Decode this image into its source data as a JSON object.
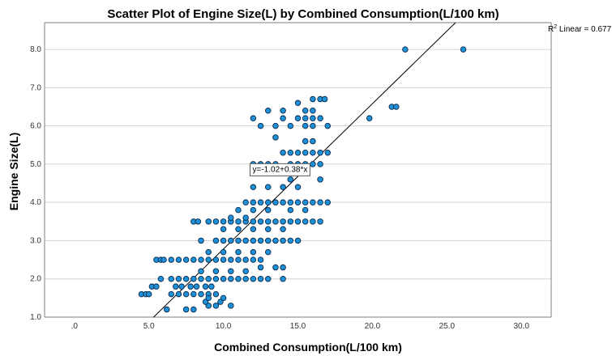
{
  "colors": {
    "point_fill": "#1E90D8",
    "point_stroke": "#0B2A4A",
    "fit_line": "#000000",
    "grid": "#D4D4D4",
    "axis": "#7F7F7F"
  },
  "chart_data": {
    "type": "scatter",
    "title": "Scatter Plot of Engine Size(L) by Combined Consumption(L/100 km)",
    "xlabel": "Combined Consumption(L/100 km)",
    "ylabel": "Engine Size(L)",
    "xlim": [
      -2.0,
      32.0
    ],
    "ylim": [
      1.0,
      8.7
    ],
    "x_ticks": [
      0,
      5,
      10,
      15,
      20,
      25,
      30
    ],
    "x_tick_labels": [
      ".0",
      "5.0",
      "10.0",
      "15.0",
      "20.0",
      "25.0",
      "30.0"
    ],
    "y_ticks": [
      1,
      2,
      3,
      4,
      5,
      6,
      7,
      8
    ],
    "y_tick_labels": [
      "1.0",
      "2.0",
      "3.0",
      "4.0",
      "5.0",
      "6.0",
      "7.0",
      "8.0"
    ],
    "grid": "horizontal",
    "fit_line": {
      "intercept": -1.02,
      "slope": 0.38,
      "label": "y=-1.02+0.38*x",
      "label_at": [
        13.8,
        4.8
      ]
    },
    "r2_label": {
      "prefix": "R",
      "superscript": "2",
      "text": " Linear = 0.677"
    },
    "points": [
      [
        4.5,
        1.6
      ],
      [
        4.8,
        1.6
      ],
      [
        5.0,
        1.6
      ],
      [
        5.2,
        1.8
      ],
      [
        5.5,
        1.8
      ],
      [
        5.5,
        2.5
      ],
      [
        5.8,
        2.5
      ],
      [
        6.0,
        2.5
      ],
      [
        5.8,
        2.0
      ],
      [
        6.5,
        2.0
      ],
      [
        7.0,
        2.0
      ],
      [
        7.5,
        2.0
      ],
      [
        6.5,
        2.5
      ],
      [
        7.0,
        2.5
      ],
      [
        7.5,
        2.5
      ],
      [
        6.5,
        1.6
      ],
      [
        7.0,
        1.6
      ],
      [
        7.5,
        1.6
      ],
      [
        8.0,
        1.6
      ],
      [
        8.5,
        1.6
      ],
      [
        9.0,
        1.6
      ],
      [
        9.5,
        1.6
      ],
      [
        6.8,
        1.8
      ],
      [
        7.2,
        1.8
      ],
      [
        7.8,
        1.8
      ],
      [
        8.2,
        1.8
      ],
      [
        8.8,
        1.8
      ],
      [
        9.2,
        1.8
      ],
      [
        6.2,
        1.2
      ],
      [
        7.5,
        1.2
      ],
      [
        8.0,
        1.2
      ],
      [
        9.0,
        1.3
      ],
      [
        9.5,
        1.3
      ],
      [
        10.5,
        1.3
      ],
      [
        8.8,
        1.4
      ],
      [
        9.8,
        1.4
      ],
      [
        10.0,
        1.5
      ],
      [
        9.0,
        1.5
      ],
      [
        8.0,
        2.0
      ],
      [
        8.5,
        2.0
      ],
      [
        9.0,
        2.0
      ],
      [
        9.5,
        2.0
      ],
      [
        10.0,
        2.0
      ],
      [
        10.5,
        2.0
      ],
      [
        11.0,
        2.0
      ],
      [
        11.5,
        2.0
      ],
      [
        12.0,
        2.0
      ],
      [
        12.5,
        2.0
      ],
      [
        8.5,
        2.2
      ],
      [
        9.5,
        2.2
      ],
      [
        10.5,
        2.2
      ],
      [
        11.5,
        2.2
      ],
      [
        13.0,
        2.0
      ],
      [
        8.0,
        2.5
      ],
      [
        8.5,
        2.5
      ],
      [
        9.0,
        2.5
      ],
      [
        9.5,
        2.5
      ],
      [
        10.0,
        2.5
      ],
      [
        10.5,
        2.5
      ],
      [
        11.0,
        2.5
      ],
      [
        11.5,
        2.5
      ],
      [
        12.0,
        2.5
      ],
      [
        12.5,
        2.5
      ],
      [
        9.0,
        2.7
      ],
      [
        10.0,
        2.7
      ],
      [
        11.0,
        2.7
      ],
      [
        12.0,
        2.7
      ],
      [
        13.0,
        2.7
      ],
      [
        8.5,
        3.0
      ],
      [
        9.5,
        3.0
      ],
      [
        10.0,
        3.0
      ],
      [
        10.5,
        3.0
      ],
      [
        11.0,
        3.0
      ],
      [
        11.5,
        3.0
      ],
      [
        12.0,
        3.0
      ],
      [
        12.5,
        3.0
      ],
      [
        13.0,
        3.0
      ],
      [
        13.5,
        3.0
      ],
      [
        14.0,
        3.0
      ],
      [
        14.5,
        3.0
      ],
      [
        15.0,
        3.0
      ],
      [
        10.0,
        3.3
      ],
      [
        11.0,
        3.3
      ],
      [
        12.0,
        3.3
      ],
      [
        13.0,
        3.3
      ],
      [
        14.0,
        3.3
      ],
      [
        12.5,
        2.3
      ],
      [
        13.5,
        2.3
      ],
      [
        14.0,
        2.3
      ],
      [
        14.0,
        2.0
      ],
      [
        9.0,
        3.5
      ],
      [
        9.5,
        3.5
      ],
      [
        10.0,
        3.5
      ],
      [
        10.5,
        3.5
      ],
      [
        11.0,
        3.5
      ],
      [
        11.5,
        3.5
      ],
      [
        12.0,
        3.5
      ],
      [
        12.5,
        3.5
      ],
      [
        13.0,
        3.5
      ],
      [
        13.5,
        3.5
      ],
      [
        14.0,
        3.5
      ],
      [
        14.5,
        3.5
      ],
      [
        15.0,
        3.5
      ],
      [
        15.5,
        3.5
      ],
      [
        16.0,
        3.5
      ],
      [
        16.5,
        3.5
      ],
      [
        8.0,
        3.5
      ],
      [
        8.3,
        3.5
      ],
      [
        10.5,
        3.6
      ],
      [
        11.5,
        3.6
      ],
      [
        11.0,
        3.8
      ],
      [
        12.0,
        3.8
      ],
      [
        13.0,
        3.8
      ],
      [
        14.5,
        3.8
      ],
      [
        15.5,
        3.8
      ],
      [
        11.5,
        4.0
      ],
      [
        12.0,
        4.0
      ],
      [
        12.5,
        4.0
      ],
      [
        13.0,
        4.0
      ],
      [
        13.5,
        4.0
      ],
      [
        14.0,
        4.0
      ],
      [
        14.5,
        4.0
      ],
      [
        15.0,
        4.0
      ],
      [
        15.5,
        4.0
      ],
      [
        16.0,
        4.0
      ],
      [
        16.5,
        4.0
      ],
      [
        17.0,
        4.0
      ],
      [
        12.0,
        4.4
      ],
      [
        13.0,
        4.4
      ],
      [
        14.0,
        4.4
      ],
      [
        15.0,
        4.4
      ],
      [
        14.5,
        4.6
      ],
      [
        16.5,
        4.6
      ],
      [
        12.0,
        5.0
      ],
      [
        12.5,
        5.0
      ],
      [
        13.0,
        5.0
      ],
      [
        13.5,
        5.0
      ],
      [
        14.5,
        5.0
      ],
      [
        15.0,
        5.0
      ],
      [
        15.5,
        5.0
      ],
      [
        16.0,
        5.0
      ],
      [
        16.5,
        5.0
      ],
      [
        14.0,
        5.3
      ],
      [
        14.5,
        5.3
      ],
      [
        15.0,
        5.3
      ],
      [
        15.5,
        5.3
      ],
      [
        16.0,
        5.3
      ],
      [
        16.5,
        5.3
      ],
      [
        17.0,
        5.3
      ],
      [
        15.5,
        5.6
      ],
      [
        16.0,
        5.6
      ],
      [
        13.5,
        5.7
      ],
      [
        12.5,
        6.0
      ],
      [
        13.5,
        6.0
      ],
      [
        14.5,
        6.0
      ],
      [
        15.5,
        6.0
      ],
      [
        16.0,
        6.0
      ],
      [
        17.0,
        6.0
      ],
      [
        12.0,
        6.2
      ],
      [
        14.0,
        6.2
      ],
      [
        15.0,
        6.2
      ],
      [
        15.5,
        6.2
      ],
      [
        16.0,
        6.2
      ],
      [
        16.5,
        6.2
      ],
      [
        13.0,
        6.4
      ],
      [
        14.0,
        6.4
      ],
      [
        15.5,
        6.4
      ],
      [
        16.0,
        6.4
      ],
      [
        15.0,
        6.6
      ],
      [
        16.0,
        6.7
      ],
      [
        16.5,
        6.7
      ],
      [
        16.8,
        6.7
      ],
      [
        19.8,
        6.2
      ],
      [
        21.3,
        6.5
      ],
      [
        21.6,
        6.5
      ],
      [
        22.2,
        8.0
      ],
      [
        26.1,
        8.0
      ]
    ]
  }
}
